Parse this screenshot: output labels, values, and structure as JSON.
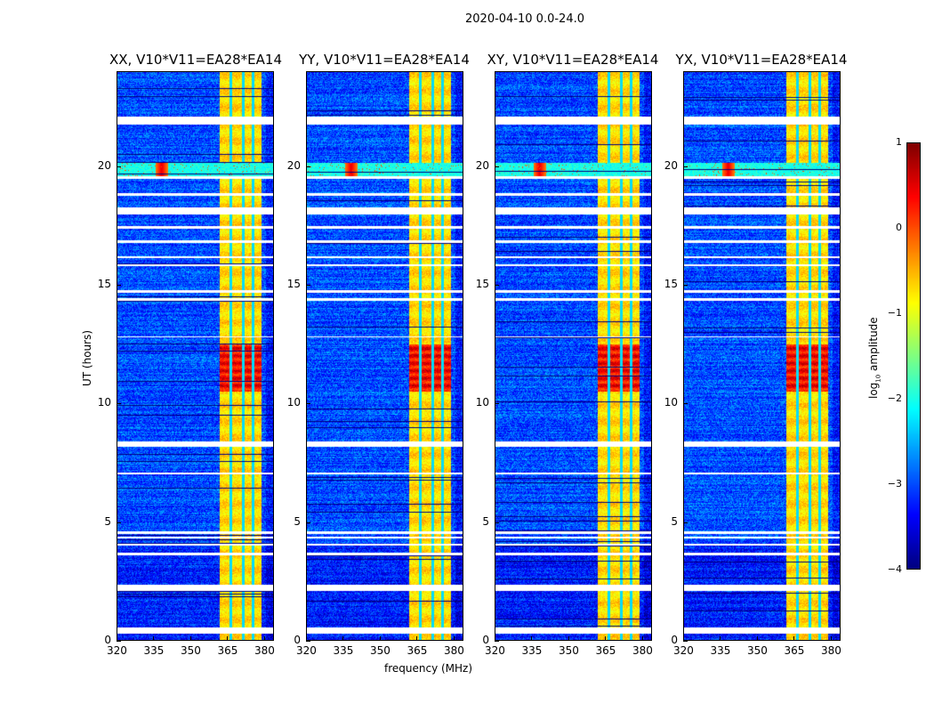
{
  "chart_data": {
    "type": "heatmap",
    "title": "2020-04-10 0.0-24.0",
    "xlabel": "frequency (MHz)",
    "ylabel": "UT (hours)",
    "xlim": [
      320,
      384
    ],
    "ylim": [
      0,
      24
    ],
    "xticks": [
      320,
      335,
      350,
      365,
      380
    ],
    "yticks": [
      0,
      5,
      10,
      15,
      20
    ],
    "colormap": "jet",
    "colorbar": {
      "label_prefix": "log",
      "label_sub": "10",
      "label_suffix": " amplitude",
      "range": [
        -4,
        1
      ],
      "ticks": [
        "1",
        "0",
        "−1",
        "−2",
        "−3",
        "−4"
      ]
    },
    "panels": [
      {
        "title": "XX, V10*V11=EA28*EA14"
      },
      {
        "title": "YY, V10*V11=EA28*EA14"
      },
      {
        "title": "XY, V10*V11=EA28*EA14"
      },
      {
        "title": "YX, V10*V11=EA28*EA14"
      }
    ],
    "features": {
      "background_log_amp": -3.0,
      "rfi_band_mhz": [
        362,
        379
      ],
      "rfi_band_log_amp": -0.7,
      "rfi_band_gaps_mhz": [
        366.5,
        371.5,
        375.5,
        379.5
      ],
      "strong_rfi_hours": [
        10.5,
        12.5
      ],
      "broadband_event_hours": [
        19.6,
        20.2
      ],
      "broadband_event_peak_mhz": 338,
      "flagged_hours": [
        [
          21.8,
          22.15
        ],
        [
          19.5,
          19.6
        ],
        [
          18.8,
          18.9
        ],
        [
          18.0,
          18.3
        ],
        [
          17.4,
          17.5
        ],
        [
          16.8,
          16.9
        ],
        [
          16.15,
          16.25
        ],
        [
          15.8,
          15.9
        ],
        [
          14.7,
          14.8
        ],
        [
          14.35,
          14.45
        ],
        [
          12.8,
          12.85
        ],
        [
          8.2,
          8.4
        ],
        [
          7.0,
          7.1
        ],
        [
          4.5,
          4.6
        ],
        [
          4.3,
          4.4
        ],
        [
          4.0,
          4.1
        ],
        [
          3.6,
          3.7
        ],
        [
          2.1,
          2.35
        ],
        [
          0.3,
          0.55
        ]
      ]
    }
  }
}
